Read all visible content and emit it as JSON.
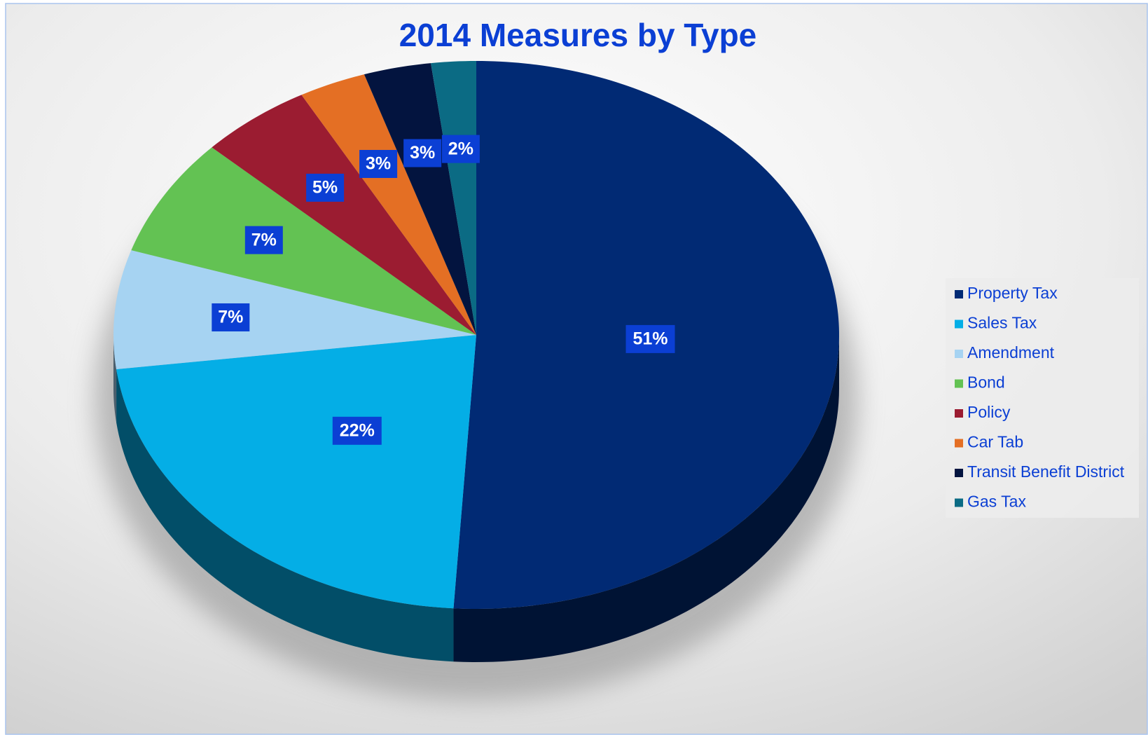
{
  "chart_data": {
    "type": "pie",
    "title": "2014 Measures by Type",
    "categories": [
      "Property Tax",
      "Sales Tax",
      "Amendment",
      "Bond",
      "Policy",
      "Car Tab",
      "Transit Benefit District",
      "Gas Tax"
    ],
    "values": [
      51,
      22,
      7,
      7,
      5,
      3,
      3,
      2
    ],
    "value_labels": [
      "51%",
      "22%",
      "7%",
      "7%",
      "5%",
      "3%",
      "3%",
      "2%"
    ],
    "colors": [
      "#012a74",
      "#04aee6",
      "#a6d3f2",
      "#63c253",
      "#9b1c31",
      "#e46f24",
      "#03143f",
      "#0b6b84"
    ],
    "legend": "right"
  }
}
